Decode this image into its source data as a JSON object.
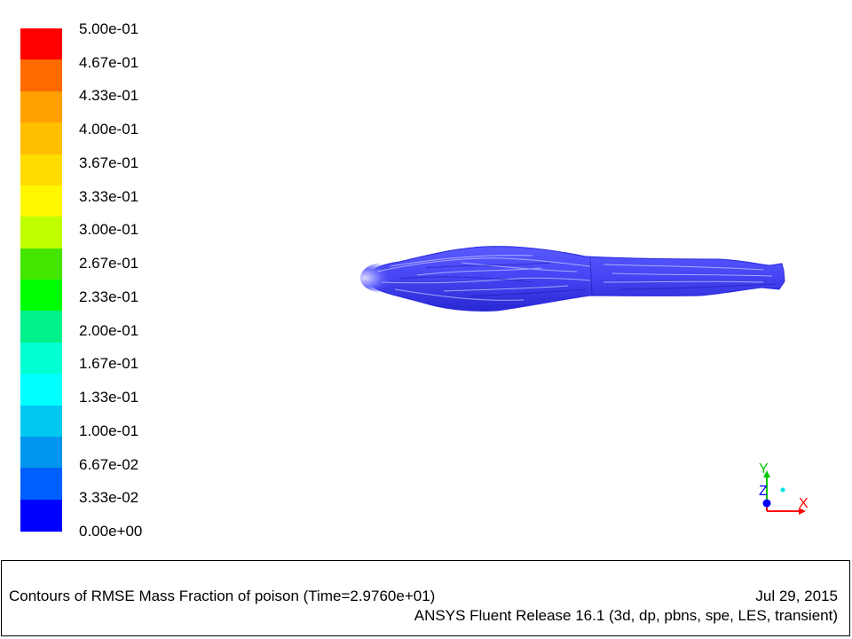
{
  "colorbar": {
    "labels": [
      "5.00e-01",
      "4.67e-01",
      "4.33e-01",
      "4.00e-01",
      "3.67e-01",
      "3.33e-01",
      "3.00e-01",
      "2.67e-01",
      "2.33e-01",
      "2.00e-01",
      "1.67e-01",
      "1.33e-01",
      "1.00e-01",
      "6.67e-02",
      "3.33e-02",
      "0.00e+00"
    ],
    "colors": [
      "#ff0000",
      "#ff6a00",
      "#ff9f00",
      "#ffbe00",
      "#ffdc00",
      "#fff700",
      "#bfff00",
      "#44e600",
      "#00ff00",
      "#00f08a",
      "#00ffd2",
      "#00ffff",
      "#00c8f0",
      "#0096f0",
      "#0060ff",
      "#0000ff"
    ]
  },
  "plume": {
    "color": "#3c3cf0",
    "highlight": "#b8b8ff",
    "shade": "#1e1ec8"
  },
  "axes": {
    "x_label": "X",
    "y_label": "Y",
    "z_label": "Z",
    "x_color": "#ff0000",
    "y_color": "#00c800",
    "z_color": "#0000ff"
  },
  "footer": {
    "caption": "Contours of RMSE Mass Fraction of poison  (Time=2.9760e+01)",
    "date": "Jul 29, 2015",
    "release": "ANSYS Fluent Release 16.1 (3d, dp, pbns, spe, LES, transient)"
  }
}
